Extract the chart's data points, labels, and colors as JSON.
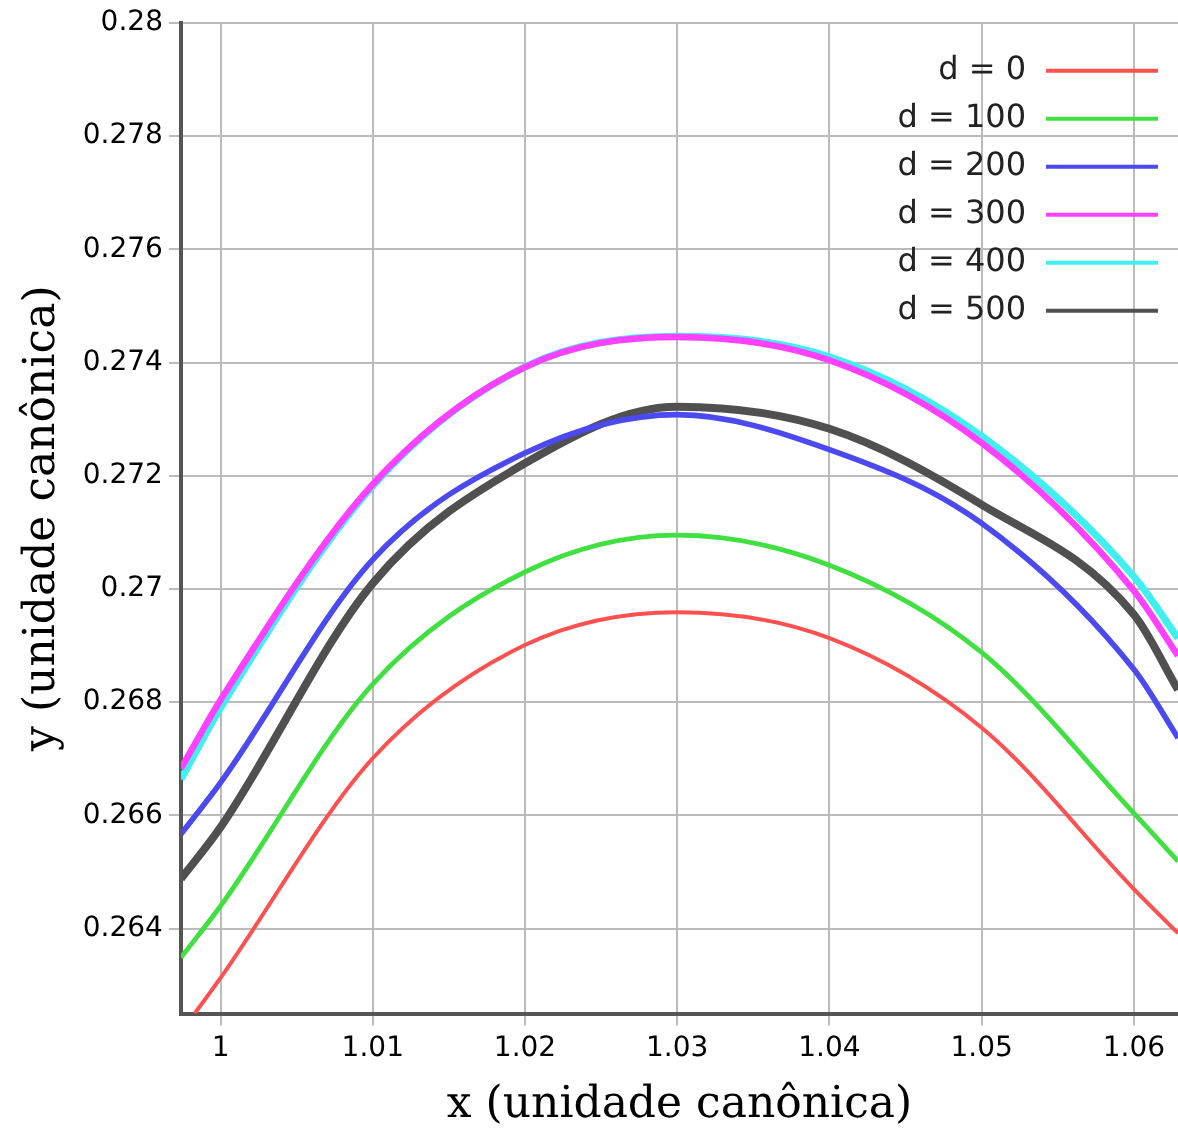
{
  "chart_data": {
    "type": "line",
    "xlabel": "x (unidade canônica)",
    "ylabel": "y (unidade canônica)",
    "x": [
      0.9974,
      1,
      1.01,
      1.02,
      1.03,
      1.04,
      1.05,
      1.06,
      1.0629
    ],
    "xlim": [
      0.9974,
      1.0629
    ],
    "ylim": [
      0.2625,
      0.28
    ],
    "xticks": [
      1,
      1.01,
      1.02,
      1.03,
      1.04,
      1.05,
      1.06
    ],
    "yticks": [
      0.264,
      0.266,
      0.268,
      0.27,
      0.272,
      0.274,
      0.276,
      0.278,
      0.28
    ],
    "grid": true,
    "legend": "top right",
    "marker": "none",
    "line_style": "solid",
    "series": [
      {
        "name": "d = 0",
        "color": "#ff5050",
        "x": [
          0.9983,
          1,
          1.01,
          1.02,
          1.03,
          1.04,
          1.05,
          1.06,
          1.0629
        ],
        "values": [
          0.2625,
          0.26313,
          0.26701,
          0.26901,
          0.26959,
          0.26913,
          0.26755,
          0.2647,
          0.26392
        ]
      },
      {
        "name": "d = 100",
        "color": "#40e040",
        "values": [
          0.26349,
          0.2644,
          0.26832,
          0.2703,
          0.27095,
          0.27042,
          0.26888,
          0.26604,
          0.26519
        ]
      },
      {
        "name": "d = 200",
        "color": "#4a4af0",
        "values": [
          0.26567,
          0.26658,
          0.27052,
          0.2724,
          0.27308,
          0.27246,
          0.27116,
          0.26858,
          0.26737
        ]
      },
      {
        "name": "d = 300",
        "color": "#ff40ff",
        "values": [
          0.26683,
          0.26804,
          0.27185,
          0.27392,
          0.27445,
          0.27404,
          0.27258,
          0.26997,
          0.26882
        ]
      },
      {
        "name": "d = 400",
        "color": "#40f0f0",
        "values": [
          0.26664,
          0.2679,
          0.27182,
          0.27392,
          0.27446,
          0.2741,
          0.2727,
          0.27022,
          0.26913
        ]
      },
      {
        "name": "d = 500",
        "color": "#505050",
        "values": [
          0.26488,
          0.26579,
          0.2701,
          0.27222,
          0.27322,
          0.27283,
          0.27149,
          0.26955,
          0.26822
        ]
      }
    ]
  }
}
